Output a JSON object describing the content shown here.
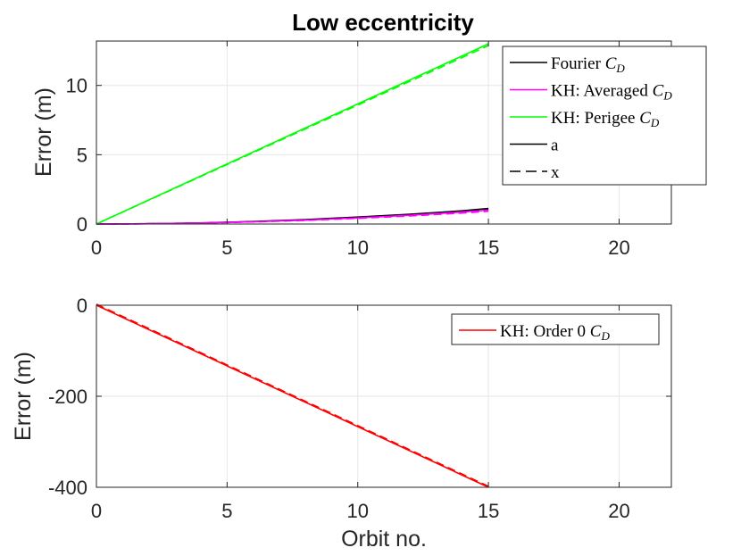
{
  "chart_data": [
    {
      "type": "line",
      "title": "Low eccentricity",
      "xlabel": "",
      "ylabel": "Error (m)",
      "xlim": [
        0,
        22
      ],
      "ylim": [
        0,
        13.2
      ],
      "xticks": [
        0,
        5,
        10,
        15,
        20
      ],
      "yticks": [
        0,
        5,
        10
      ],
      "grid": true,
      "legend_position": "top-right",
      "series": [
        {
          "name": "Fourier",
          "subscript": "D",
          "color": "#000000",
          "style": "solid",
          "x": [
            0,
            2,
            4,
            6,
            8,
            10,
            12,
            14,
            15
          ],
          "y": [
            0,
            0.02,
            0.08,
            0.18,
            0.32,
            0.5,
            0.7,
            0.95,
            1.12
          ]
        },
        {
          "name": "KH: Averaged",
          "subscript": "D",
          "color": "#ff00ff",
          "style": "solid",
          "x": [
            0,
            2,
            4,
            6,
            8,
            10,
            12,
            14,
            15
          ],
          "y": [
            0,
            0.02,
            0.07,
            0.16,
            0.28,
            0.44,
            0.63,
            0.86,
            1.0
          ]
        },
        {
          "name": "KH: Perigee",
          "subscript": "D",
          "color": "#00ff00",
          "style": "solid",
          "x": [
            0,
            15
          ],
          "y": [
            0,
            13.0
          ]
        }
      ],
      "legend_styles": [
        {
          "name": "a",
          "color": "#000000",
          "style": "solid"
        },
        {
          "name": "x",
          "color": "#000000",
          "style": "dashed"
        }
      ]
    },
    {
      "type": "line",
      "title": "",
      "xlabel": "Orbit no.",
      "ylabel": "Error (m)",
      "xlim": [
        0,
        22
      ],
      "ylim": [
        -400,
        0
      ],
      "xticks": [
        0,
        5,
        10,
        15,
        20
      ],
      "yticks": [
        0,
        -200,
        -400
      ],
      "ytick_labels": [
        "0",
        "-200",
        "-400"
      ],
      "grid": true,
      "legend_position": "top-right",
      "series": [
        {
          "name": "KH: Order 0",
          "subscript": "D",
          "color": "#ff0000",
          "style": "solid",
          "x": [
            0,
            15
          ],
          "y": [
            0,
            -400
          ]
        }
      ]
    }
  ]
}
